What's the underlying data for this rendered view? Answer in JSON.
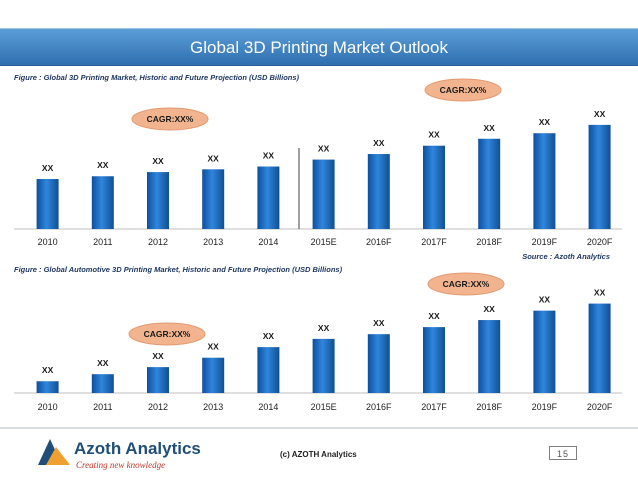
{
  "header": {
    "title": "Global 3D Printing Market Outlook"
  },
  "figure1": {
    "caption": "Figure : Global 3D Printing Market, Historic and Future Projection (USD Billions)",
    "source": "Source : Azoth Analytics"
  },
  "figure2": {
    "caption": "Figure : Global  Automotive 3D Printing Market, Historic and Future Projection (USD Billions)"
  },
  "footer": {
    "logo_name": "Azoth Analytics",
    "logo_tagline": "Creating new knowledge",
    "copyright": "(c) AZOTH Analytics",
    "page_number": "15"
  },
  "colors": {
    "header_bar": "#2f6fb0",
    "bar": "#1f6fc6",
    "bubble": "#f0b090",
    "caption": "#1f3864"
  },
  "chart_data": [
    {
      "type": "bar",
      "categories": [
        "2010",
        "2011",
        "2012",
        "2013",
        "2014",
        "2015E",
        "2016F",
        "2017F",
        "2018F",
        "2019F",
        "2020F"
      ],
      "values": [
        36,
        38,
        41,
        43,
        45,
        50,
        54,
        60,
        65,
        69,
        75
      ],
      "data_labels": [
        "XX",
        "XX",
        "XX",
        "XX",
        "XX",
        "XX",
        "XX",
        "XX",
        "XX",
        "XX",
        "XX"
      ],
      "ylim": [
        0,
        85
      ],
      "grid": false,
      "divider_after_index": 4,
      "annotations": [
        "CAGR:XX%",
        "CAGR:XX%"
      ]
    },
    {
      "type": "bar",
      "categories": [
        "2010",
        "2011",
        "2012",
        "2013",
        "2014",
        "2015E",
        "2016F",
        "2017F",
        "2018F",
        "2019F",
        "2020F"
      ],
      "values": [
        10,
        16,
        22,
        30,
        39,
        46,
        50,
        56,
        62,
        70,
        76
      ],
      "data_labels": [
        "XX",
        "XX",
        "XX",
        "XX",
        "XX",
        "XX",
        "XX",
        "XX",
        "XX",
        "XX",
        "XX"
      ],
      "ylim": [
        0,
        85
      ],
      "grid": false,
      "annotations": [
        "CAGR:XX%",
        "CAGR:XX%"
      ]
    }
  ]
}
